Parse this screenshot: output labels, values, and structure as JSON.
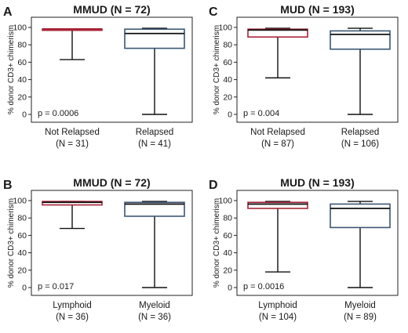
{
  "chart_data": [
    {
      "type": "box",
      "panel_letter": "A",
      "title": "MMUD (N = 72)",
      "ylabel": "% donor CD3+ chimerism",
      "ylim": [
        0,
        100
      ],
      "yticks": [
        "0",
        "20",
        "40",
        "60",
        "80",
        "100"
      ],
      "p_value": "p = 0.0006",
      "boxes": [
        {
          "category": "Not Relapsed",
          "n_label": "(N = 31)",
          "min": 63,
          "q1": 98,
          "median": 98,
          "q3": 98,
          "max": 98,
          "color": "#a8253a"
        },
        {
          "category": "Relapsed",
          "n_label": "(N = 41)",
          "min": 0,
          "q1": 76,
          "median": 93,
          "q3": 98,
          "max": 99,
          "color": "#3b5775"
        }
      ]
    },
    {
      "type": "box",
      "panel_letter": "C",
      "title": "MUD (N = 193)",
      "ylabel": "% donor CD3+ chimerism",
      "ylim": [
        0,
        100
      ],
      "yticks": [
        "0",
        "20",
        "40",
        "60",
        "80",
        "100"
      ],
      "p_value": "p = 0.004",
      "boxes": [
        {
          "category": "Not Relapsed",
          "n_label": "(N = 87)",
          "min": 42,
          "q1": 89,
          "median": 97,
          "q3": 98,
          "max": 99,
          "color": "#a8253a"
        },
        {
          "category": "Relapsed",
          "n_label": "(N = 106)",
          "min": 0,
          "q1": 75,
          "median": 92,
          "q3": 96,
          "max": 99,
          "color": "#3b5775"
        }
      ]
    },
    {
      "type": "box",
      "panel_letter": "B",
      "title": "MMUD (N = 72)",
      "ylabel": "% donor CD3+ chimerism",
      "ylim": [
        0,
        100
      ],
      "yticks": [
        "0",
        "20",
        "40",
        "60",
        "80",
        "100"
      ],
      "p_value": "p = 0.017",
      "boxes": [
        {
          "category": "Lymphoid",
          "n_label": "(N = 36)",
          "min": 68,
          "q1": 95,
          "median": 98,
          "q3": 99,
          "max": 99,
          "color": "#a8253a"
        },
        {
          "category": "Myeloid",
          "n_label": "(N = 36)",
          "min": 0,
          "q1": 82,
          "median": 96,
          "q3": 98,
          "max": 99,
          "color": "#3b5775"
        }
      ]
    },
    {
      "type": "box",
      "panel_letter": "D",
      "title": "MUD (N = 193)",
      "ylabel": "% donor CD3+ chimerism",
      "ylim": [
        0,
        100
      ],
      "yticks": [
        "0",
        "20",
        "40",
        "60",
        "80",
        "100"
      ],
      "p_value": "p = 0.0016",
      "boxes": [
        {
          "category": "Lymphoid",
          "n_label": "(N = 104)",
          "min": 18,
          "q1": 91,
          "median": 96,
          "q3": 98,
          "max": 99,
          "color": "#a8253a"
        },
        {
          "category": "Myeloid",
          "n_label": "(N = 89)",
          "min": 0,
          "q1": 69,
          "median": 91,
          "q3": 96,
          "max": 99,
          "color": "#3b5775"
        }
      ]
    }
  ]
}
